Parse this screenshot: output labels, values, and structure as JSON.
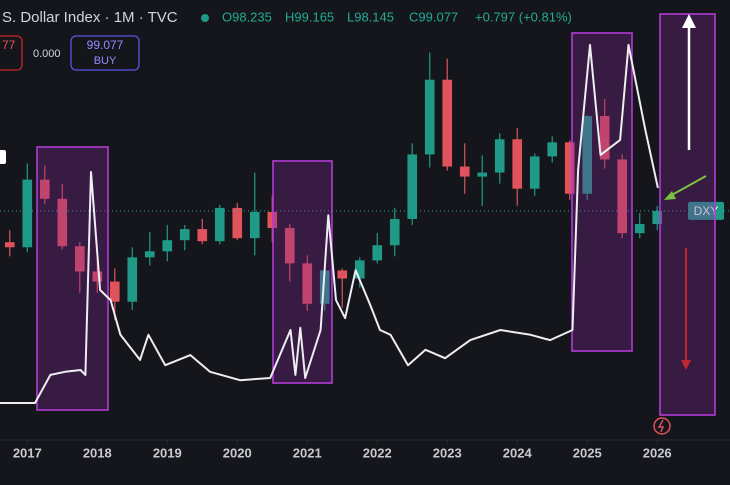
{
  "header": {
    "symbol": "S. Dollar Index · 1M · TVC",
    "open": "O98.235",
    "high": "H99.165",
    "low": "L98.145",
    "close": "C99.077",
    "change": "+0.797 (+0.81%)",
    "sell_price": "77",
    "spread": "0.000",
    "buy_price": "99.077",
    "buy_label": "BUY"
  },
  "chart_data": {
    "type": "candlestick",
    "xlim": [
      2016.61,
      2027.04
    ],
    "xticks": [
      2017,
      2018,
      2019,
      2020,
      2021,
      2022,
      2023,
      2024,
      2025,
      2026
    ],
    "ylim": [
      76.4,
      120
    ],
    "y2lim": [
      0,
      100
    ],
    "series": [
      {
        "name": "DXY",
        "up_color": "#1f9a86",
        "down_color": "#e0525c",
        "x": [
          2016.75,
          2017.0,
          2017.25,
          2017.5,
          2017.75,
          2018.0,
          2018.25,
          2018.5,
          2018.75,
          2019.0,
          2019.25,
          2019.5,
          2019.75,
          2020.0,
          2020.25,
          2020.5,
          2020.75,
          2021.0,
          2021.25,
          2021.5,
          2021.75,
          2022.0,
          2022.25,
          2022.5,
          2022.75,
          2023.0,
          2023.25,
          2023.5,
          2023.75,
          2024.0,
          2024.25,
          2024.5,
          2024.75,
          2025.0,
          2025.25,
          2025.5,
          2025.75,
          2026.0
        ],
        "open": [
          96.0,
          95.5,
          102.2,
          100.3,
          95.6,
          93.1,
          92.1,
          90.1,
          94.5,
          95.1,
          96.2,
          97.3,
          96.1,
          99.4,
          96.4,
          99.0,
          97.4,
          93.9,
          89.9,
          93.2,
          92.4,
          94.2,
          95.7,
          98.3,
          104.7,
          112.1,
          103.5,
          102.5,
          102.9,
          106.2,
          101.3,
          104.5,
          105.9,
          100.8,
          108.5,
          104.2,
          96.9,
          97.8
        ],
        "high": [
          97.2,
          103.8,
          103.6,
          101.8,
          96.0,
          94.2,
          93.4,
          95.5,
          97.0,
          97.7,
          97.7,
          98.3,
          99.7,
          99.9,
          102.9,
          100.6,
          97.8,
          94.7,
          93.4,
          93.4,
          94.5,
          96.9,
          99.4,
          105.8,
          114.8,
          114.2,
          105.8,
          104.6,
          106.8,
          107.3,
          104.8,
          106.5,
          106.1,
          108.6,
          110.2,
          104.7,
          98.9,
          99.6
        ],
        "low": [
          94.6,
          95.0,
          99.8,
          95.3,
          91.0,
          91.0,
          88.3,
          89.3,
          93.7,
          94.1,
          95.2,
          95.8,
          95.8,
          96.2,
          94.7,
          96.0,
          92.1,
          89.2,
          89.2,
          89.5,
          91.5,
          93.9,
          94.6,
          97.7,
          103.4,
          103.1,
          100.8,
          99.6,
          101.8,
          99.6,
          100.6,
          103.9,
          100.2,
          100.2,
          103.3,
          96.4,
          96.4,
          97.2
        ],
        "close": [
          95.5,
          102.2,
          100.3,
          95.6,
          93.1,
          92.1,
          90.1,
          94.5,
          95.1,
          96.2,
          97.3,
          96.1,
          99.4,
          96.4,
          99.0,
          97.4,
          93.9,
          89.9,
          93.2,
          92.4,
          94.2,
          95.7,
          98.3,
          104.7,
          112.1,
          103.5,
          102.5,
          102.9,
          106.2,
          101.3,
          104.5,
          105.9,
          100.8,
          108.5,
          104.2,
          96.9,
          97.8,
          99.1
        ]
      },
      {
        "type": "line",
        "axis": "y2",
        "color": "#eeeef2",
        "x": [
          2016.61,
          2017.11,
          2017.33,
          2017.54,
          2017.76,
          2017.83,
          2017.91,
          2018.04,
          2018.19,
          2018.33,
          2018.61,
          2018.73,
          2018.97,
          2019.33,
          2019.61,
          2020.04,
          2020.47,
          2020.76,
          2020.83,
          2020.9,
          2020.97,
          2021.19,
          2021.3,
          2021.41,
          2021.54,
          2021.69,
          2021.9,
          2022.04,
          2022.19,
          2022.44,
          2022.69,
          2022.97,
          2023.33,
          2023.76,
          2024.19,
          2024.47,
          2024.79,
          2024.87,
          2025.04,
          2025.19,
          2025.47,
          2025.59,
          2025.83,
          2026.01
        ],
        "values": [
          8.4,
          8.4,
          14.8,
          15.5,
          15.9,
          14.8,
          60.9,
          34.1,
          31.8,
          23.9,
          18.2,
          23.9,
          17.0,
          19.3,
          15.5,
          13.6,
          14.1,
          25.0,
          14.8,
          25.5,
          14.1,
          25.0,
          51.1,
          31.8,
          27.7,
          38.6,
          30.7,
          25.0,
          23.9,
          17.0,
          20.5,
          18.6,
          22.7,
          25.0,
          23.9,
          22.7,
          25.0,
          61.4,
          89.8,
          64.8,
          68.2,
          89.8,
          70.5,
          57.3
        ]
      }
    ]
  }
}
